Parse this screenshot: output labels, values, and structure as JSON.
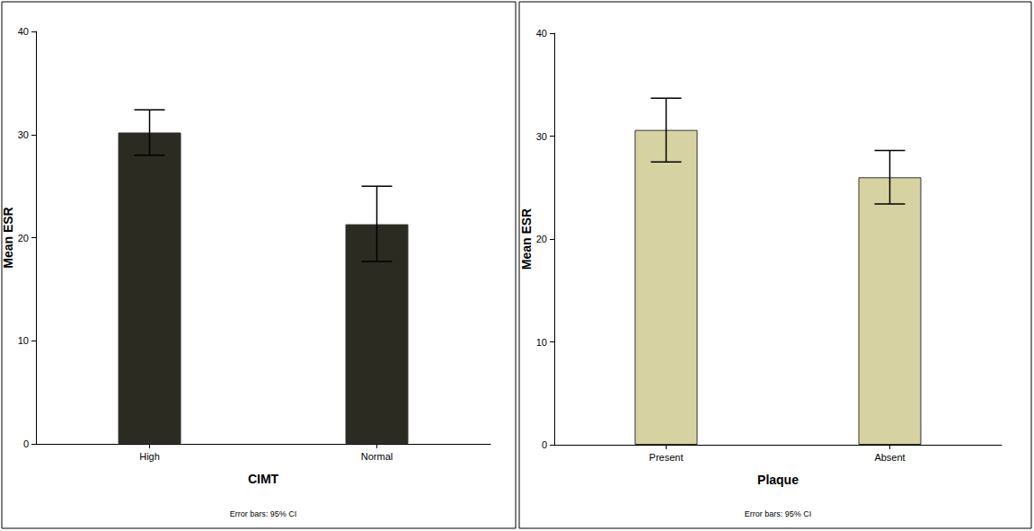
{
  "chart_data": [
    {
      "type": "bar",
      "x_label": "CIMT",
      "y_label": "Mean ESR",
      "categories": [
        "High",
        "Normal"
      ],
      "values": [
        30.2,
        21.3
      ],
      "error_low": [
        28.0,
        17.7
      ],
      "error_high": [
        32.4,
        25.0
      ],
      "color": "#2b2b22",
      "ylim": [
        0,
        40
      ],
      "yticks": [
        0,
        10,
        20,
        30,
        40
      ],
      "grid": false,
      "annotation": "Error bars: 95% CI"
    },
    {
      "type": "bar",
      "x_label": "Plaque",
      "y_label": "Mean ESR",
      "categories": [
        "Present",
        "Absent"
      ],
      "values": [
        30.6,
        26.0
      ],
      "error_low": [
        27.5,
        23.4
      ],
      "error_high": [
        33.7,
        28.6
      ],
      "color": "#d6d2a2",
      "ylim": [
        0,
        40
      ],
      "yticks": [
        0,
        10,
        20,
        30,
        40
      ],
      "grid": false,
      "annotation": "Error bars: 95% CI"
    }
  ]
}
